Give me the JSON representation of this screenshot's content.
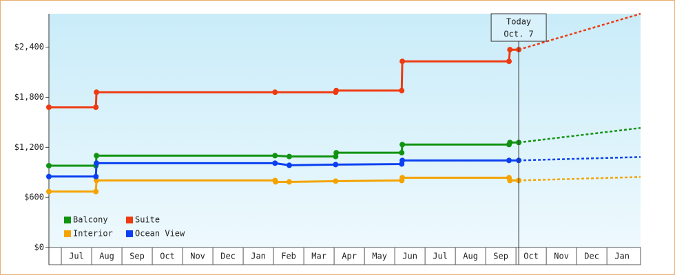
{
  "chart_data": {
    "type": "line",
    "categories": [
      "Jul",
      "Aug",
      "Sep",
      "Oct",
      "Nov",
      "Dec",
      "Jan",
      "Feb",
      "Mar",
      "Apr",
      "May",
      "Jun",
      "Jul",
      "Aug",
      "Sep",
      "Oct",
      "Nov",
      "Dec",
      "Jan"
    ],
    "xlim": [
      -0.41,
      19.11
    ],
    "ylim": [
      0,
      2800
    ],
    "yticks": [
      {
        "value": 0,
        "label": "$0"
      },
      {
        "value": 600,
        "label": "$600"
      },
      {
        "value": 1200,
        "label": "$1,200"
      },
      {
        "value": 1800,
        "label": "$1,800"
      },
      {
        "value": 2400,
        "label": "$2,400"
      }
    ],
    "legend": "lower left",
    "annotation": {
      "x": 15.09,
      "lines": [
        "Today",
        "Oct. 7"
      ]
    },
    "series": [
      {
        "name": "Balcony",
        "color": "#119311",
        "x": [
          -0.41,
          1.14,
          1.16,
          7.05,
          7.52,
          9.05,
          9.07,
          11.23,
          11.25,
          14.77,
          14.8,
          15.09
        ],
        "values": [
          980,
          980,
          1100,
          1100,
          1090,
          1090,
          1135,
          1135,
          1233,
          1233,
          1258,
          1258
        ],
        "projection_x": [
          15.09,
          19.11
        ],
        "projection_values": [
          1258,
          1432
        ]
      },
      {
        "name": "Suite",
        "color": "#ee3a10",
        "x": [
          -0.41,
          1.14,
          1.16,
          7.05,
          9.05,
          9.07,
          11.23,
          11.25,
          14.77,
          14.8,
          15.09
        ],
        "values": [
          1680,
          1680,
          1860,
          1860,
          1860,
          1880,
          1880,
          2230,
          2230,
          2370,
          2370
        ],
        "projection_x": [
          15.09,
          19.11
        ],
        "projection_values": [
          2370,
          2800
        ]
      },
      {
        "name": "Interior",
        "color": "#f4a300",
        "x": [
          -0.41,
          1.14,
          1.16,
          7.05,
          7.07,
          7.52,
          9.05,
          11.23,
          11.25,
          14.77,
          14.8,
          15.09
        ],
        "values": [
          670,
          670,
          803,
          803,
          786,
          786,
          795,
          803,
          836,
          836,
          803,
          803
        ],
        "projection_x": [
          15.09,
          19.11
        ],
        "projection_values": [
          803,
          845
        ]
      },
      {
        "name": "Ocean View",
        "color": "#0a40f0",
        "x": [
          -0.41,
          1.14,
          1.16,
          7.05,
          7.52,
          9.05,
          11.23,
          11.25,
          14.77,
          15.09
        ],
        "values": [
          850,
          850,
          1010,
          1010,
          985,
          993,
          1000,
          1043,
          1043,
          1043
        ],
        "projection_x": [
          15.09,
          19.11
        ],
        "projection_values": [
          1043,
          1084
        ]
      }
    ]
  }
}
